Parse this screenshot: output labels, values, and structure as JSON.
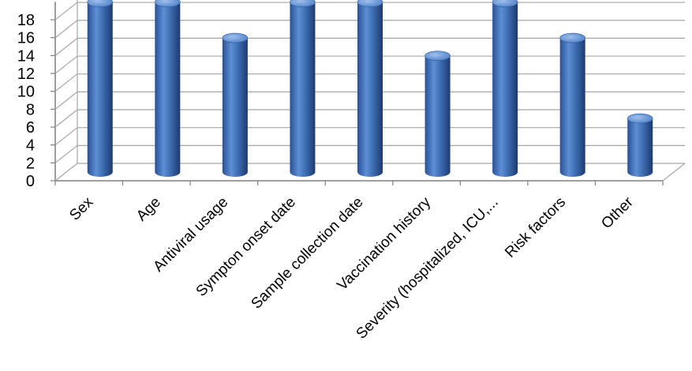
{
  "chart_data": {
    "type": "bar",
    "categories": [
      "Sex",
      "Age",
      "Antiviral usage",
      "Sympton onset date",
      "Sample collection date",
      "Vaccination history",
      "Severity (hospitalized, ICU,...",
      "Risk factors",
      "Other"
    ],
    "values": [
      19,
      19,
      15,
      19,
      19,
      13,
      19,
      15,
      6
    ],
    "yticks": [
      0,
      2,
      4,
      6,
      8,
      10,
      12,
      14,
      16,
      18
    ],
    "ylim": [
      0,
      20
    ],
    "grid": true,
    "style": "3d-cylinder",
    "colors": {
      "bar": "#3f6fb4",
      "bar_dark": "#1f3f78",
      "bar_light": "#8fb3e6",
      "grid": "#a6a6a6",
      "axis": "#7f7f7f"
    }
  }
}
